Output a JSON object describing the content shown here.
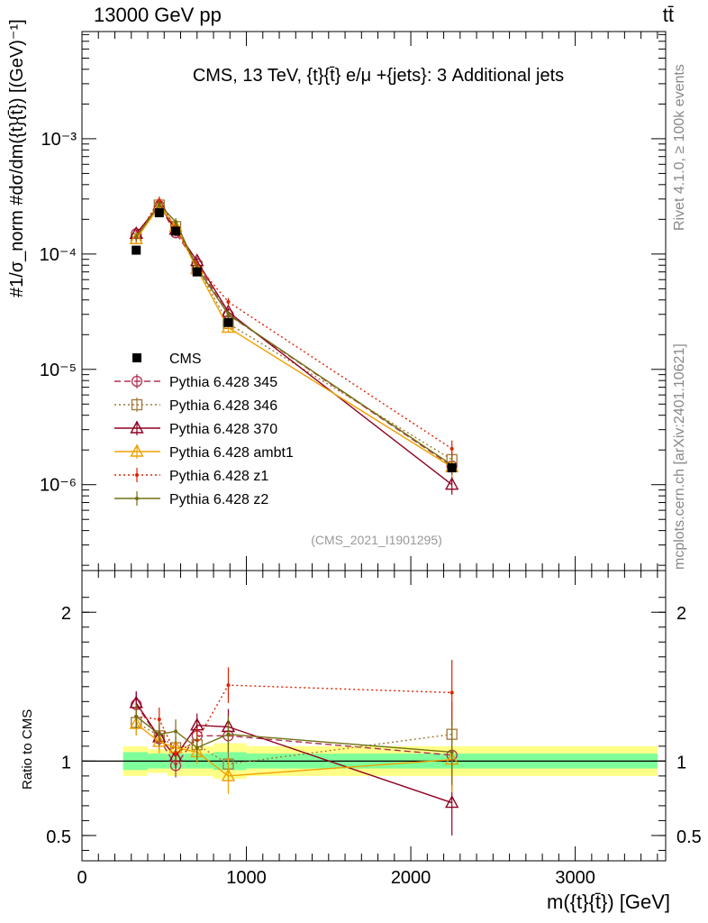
{
  "header": {
    "left": "13000 GeV pp",
    "right": "tt̄"
  },
  "side_labels": {
    "rivet": "Rivet 4.1.0, ≥ 100k events",
    "mcplots": "mcplots.cern.ch [arXiv:2401.10621]"
  },
  "y_axis_label": "#1/σ_norm #dσ/dm({t}{t̄}) [(GeV)⁻¹]",
  "x_axis_label": "m({t}{t̄}) [GeV]",
  "ratio_ylabel": "Ratio to CMS",
  "colors": {
    "cms": "#000000",
    "p345": "#b03050",
    "p346": "#a07838",
    "p370": "#900020",
    "ambt1": "#f0a000",
    "z1": "#e02000",
    "z2": "#707010",
    "band_inner": "#7fff9a",
    "band_outer": "#ffff88"
  },
  "chart_data": [
    {
      "type": "line",
      "panel": "main",
      "title": "CMS, 13 TeV, {t}{t̄} e/μ +{jets}: 3 Additional jets",
      "watermark": "(CMS_2021_I1901295)",
      "ylabel": "#1/σ_norm #dσ/dm({t}{t̄}) [(GeV)⁻¹]",
      "xlim": [
        0,
        3550
      ],
      "ylim": [
        1.8e-07,
        0.0085
      ],
      "yscale": "log",
      "ytick_values": [
        1e-06,
        1e-05,
        0.0001,
        0.001
      ],
      "ytick_labels": [
        "10⁻⁶",
        "10⁻⁵",
        "10⁻⁴",
        "10⁻³"
      ],
      "x": [
        330,
        470,
        570,
        700,
        890,
        2250
      ],
      "series": [
        {
          "name": "CMS",
          "values": [
            0.000108,
            0.000228,
            0.000158,
            7e-05,
            2.55e-05,
            1.4e-06
          ],
          "style": "data"
        },
        {
          "name": "Pythia 6.428 345",
          "values": [
            0.00015,
            0.000262,
            0.000153,
            8.2e-05,
            2.98e-05,
            1.45e-06
          ],
          "style": "dashed",
          "marker": "circle"
        },
        {
          "name": "Pythia 6.428 346",
          "values": [
            0.000136,
            0.000266,
            0.000173,
            7.8e-05,
            2.5e-05,
            1.65e-06
          ],
          "style": "dotted",
          "marker": "square"
        },
        {
          "name": "Pythia 6.428 370",
          "values": [
            0.00015,
            0.000265,
            0.000163,
            8.7e-05,
            3.15e-05,
            1e-06
          ],
          "style": "solid",
          "marker": "triangle"
        },
        {
          "name": "Pythia 6.428 ambt1",
          "values": [
            0.000135,
            0.000258,
            0.000173,
            7.4e-05,
            2.3e-05,
            1.42e-06
          ],
          "style": "solid",
          "marker": "triangle"
        },
        {
          "name": "Pythia 6.428 z1",
          "values": [
            0.00014,
            0.000292,
            0.000166,
            8e-05,
            3.85e-05,
            2.05e-06
          ],
          "style": "dotted",
          "marker": "dot"
        },
        {
          "name": "Pythia 6.428 z2",
          "values": [
            0.00014,
            0.00027,
            0.00019,
            7.6e-05,
            3e-05,
            1.48e-06
          ],
          "style": "solid",
          "marker": "dot"
        }
      ]
    },
    {
      "type": "line",
      "panel": "ratio",
      "ylabel": "Ratio to CMS",
      "xlabel": "m({t}{t̄}) [GeV]",
      "xlim": [
        0,
        3550
      ],
      "ylim": [
        0.33,
        2.28
      ],
      "ytick_values": [
        0.5,
        1,
        2
      ],
      "ytick_labels": [
        "0.5",
        "1",
        "2"
      ],
      "xtick_values": [
        0,
        1000,
        2000,
        3000
      ],
      "xtick_labels": [
        "0",
        "1000",
        "2000",
        "3000"
      ],
      "x": [
        330,
        470,
        570,
        700,
        890,
        2250
      ],
      "band": {
        "x_edges": [
          250,
          400,
          520,
          620,
          800,
          1000,
          3500
        ],
        "inner": [
          0.06,
          0.05,
          0.05,
          0.05,
          0.06,
          0.05
        ],
        "outer": [
          0.1,
          0.08,
          0.1,
          0.1,
          0.12,
          0.1
        ]
      },
      "series": [
        {
          "name": "Pythia 6.428 345",
          "values": [
            1.38,
            1.15,
            0.97,
            1.17,
            1.17,
            1.04
          ]
        },
        {
          "name": "Pythia 6.428 346",
          "values": [
            1.26,
            1.17,
            1.09,
            1.11,
            0.98,
            1.18
          ]
        },
        {
          "name": "Pythia 6.428 370",
          "values": [
            1.39,
            1.16,
            1.03,
            1.24,
            1.23,
            0.72
          ]
        },
        {
          "name": "Pythia 6.428 ambt1",
          "values": [
            1.25,
            1.13,
            1.09,
            1.06,
            0.9,
            1.01
          ]
        },
        {
          "name": "Pythia 6.428 z1",
          "values": [
            1.3,
            1.28,
            1.05,
            1.14,
            1.51,
            1.46
          ]
        },
        {
          "name": "Pythia 6.428 z2",
          "values": [
            1.3,
            1.18,
            1.2,
            1.09,
            1.18,
            1.06
          ]
        }
      ]
    }
  ]
}
